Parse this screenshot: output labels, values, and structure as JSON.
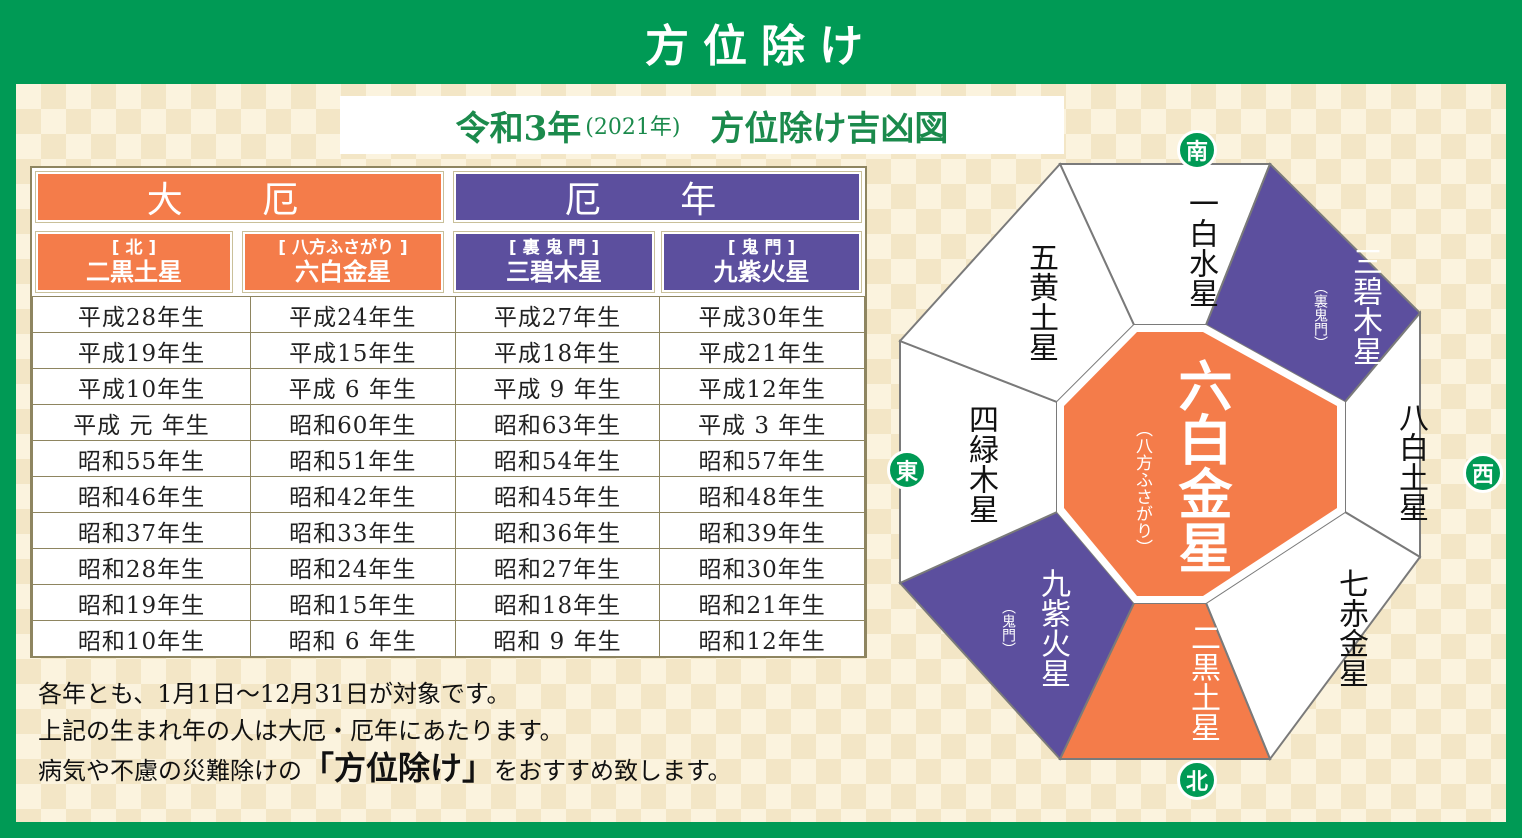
{
  "header": {
    "title": "方位除け"
  },
  "subtitle": {
    "main": "令和3年",
    "year": "(2021年)",
    "title": "方位除け吉凶図"
  },
  "table": {
    "categories": [
      "大 厄",
      "厄 年"
    ],
    "columns": [
      {
        "direction": "[ 北 ]",
        "star": "二黒土星"
      },
      {
        "direction": "[ 八方ふさがり ]",
        "star": "六白金星"
      },
      {
        "direction": "[ 裏 鬼 門 ]",
        "star": "三碧木星"
      },
      {
        "direction": "[ 鬼 門 ]",
        "star": "九紫火星"
      }
    ],
    "rows": [
      [
        "平成28年生",
        "平成24年生",
        "平成27年生",
        "平成30年生"
      ],
      [
        "平成19年生",
        "平成15年生",
        "平成18年生",
        "平成21年生"
      ],
      [
        "平成10年生",
        "平成 6 年生",
        "平成 9 年生",
        "平成12年生"
      ],
      [
        "平成 元 年生",
        "昭和60年生",
        "昭和63年生",
        "平成 3 年生"
      ],
      [
        "昭和55年生",
        "昭和51年生",
        "昭和54年生",
        "昭和57年生"
      ],
      [
        "昭和46年生",
        "昭和42年生",
        "昭和45年生",
        "昭和48年生"
      ],
      [
        "昭和37年生",
        "昭和33年生",
        "昭和36年生",
        "昭和39年生"
      ],
      [
        "昭和28年生",
        "昭和24年生",
        "昭和27年生",
        "昭和30年生"
      ],
      [
        "昭和19年生",
        "昭和15年生",
        "昭和18年生",
        "昭和21年生"
      ],
      [
        "昭和10年生",
        "昭和 6 年生",
        "昭和 9 年生",
        "昭和12年生"
      ]
    ]
  },
  "notes": {
    "line1": "各年とも、1月1日～12月31日が対象です。",
    "line2": "上記の生まれ年の人は大厄・厄年にあたります。",
    "line3_pre": "病気や不慮の災難除けの",
    "line3_open": "「",
    "line3_em": "方位除け",
    "line3_close": "」",
    "line3_post": "をおすすめ致します。"
  },
  "diagram": {
    "directions": {
      "south": "南",
      "north": "北",
      "east": "東",
      "west": "西"
    },
    "center": {
      "star": "六白金星",
      "note": "（八方ふさがり）"
    },
    "sectors": {
      "south": "一白水星",
      "southwest": "三碧木星",
      "southwest_note": "（裏鬼門）",
      "west": "八白土星",
      "northwest": "七赤金星",
      "north": "二黒土星",
      "northeast": "九紫火星",
      "northeast_note": "（鬼門）",
      "east": "四緑木星",
      "southeast": "五黄土星"
    },
    "colors": {
      "orange": "#f47c4a",
      "purple": "#5c4f9e",
      "white": "#ffffff",
      "green": "#009a55"
    }
  }
}
